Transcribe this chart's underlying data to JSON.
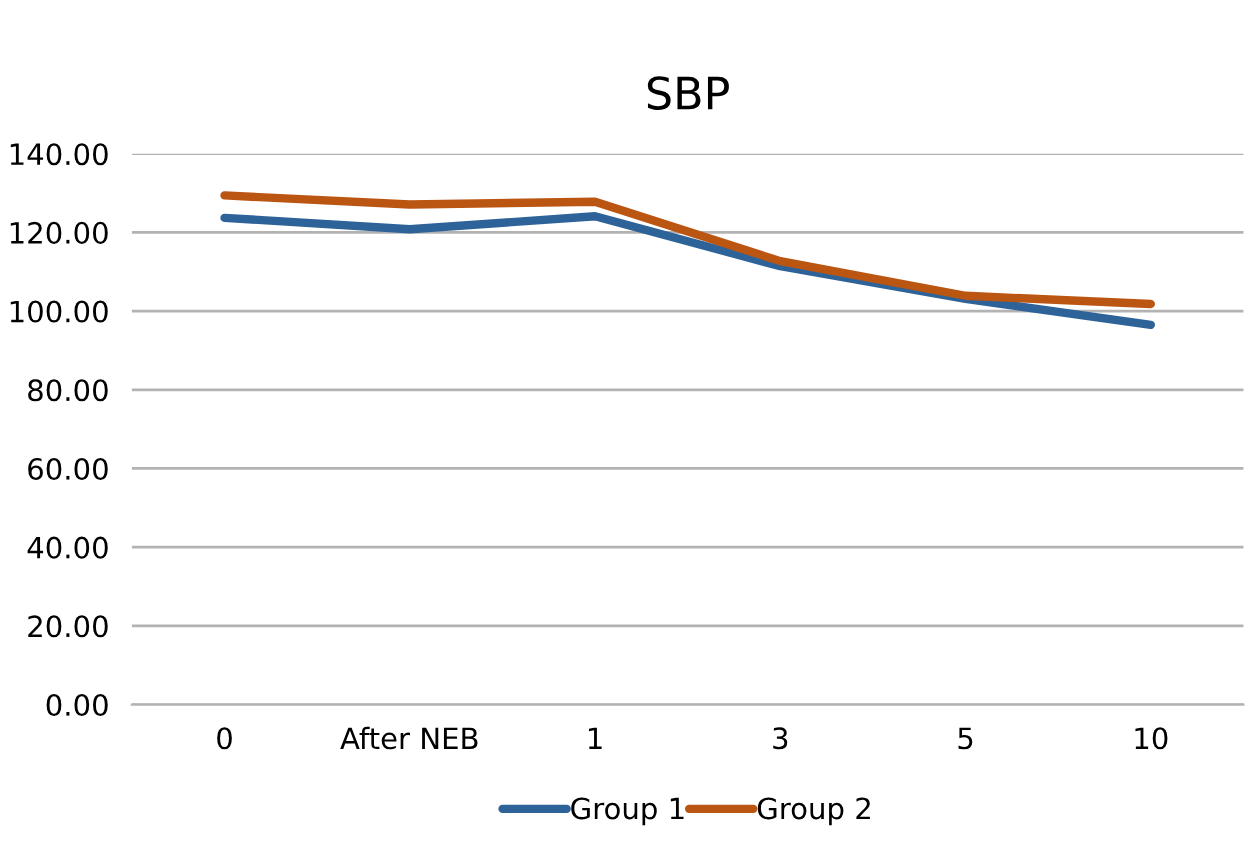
{
  "chart_data": {
    "type": "line",
    "title": "SBP",
    "categories": [
      "0",
      "After NEB",
      "1",
      "3",
      "5",
      "10"
    ],
    "series": [
      {
        "name": "Group 1",
        "color": "#2e6399",
        "values": [
          123.7,
          120.8,
          124.1,
          111.4,
          103.1,
          96.5
        ]
      },
      {
        "name": "Group 2",
        "color": "#bb5512",
        "values": [
          129.4,
          127.1,
          127.8,
          112.7,
          103.9,
          101.8
        ]
      }
    ],
    "ylim": [
      0,
      140
    ],
    "yticks": [
      {
        "value": 0,
        "label": "0.00"
      },
      {
        "value": 20,
        "label": "20.00"
      },
      {
        "value": 40,
        "label": "40.00"
      },
      {
        "value": 60,
        "label": "60.00"
      },
      {
        "value": 80,
        "label": "80.00"
      },
      {
        "value": 100,
        "label": "100.00"
      },
      {
        "value": 120,
        "label": "120.00"
      },
      {
        "value": 140,
        "label": "140.00"
      }
    ],
    "grid": "y",
    "legend": "bottom",
    "marker": "none",
    "line_style": "solid"
  }
}
